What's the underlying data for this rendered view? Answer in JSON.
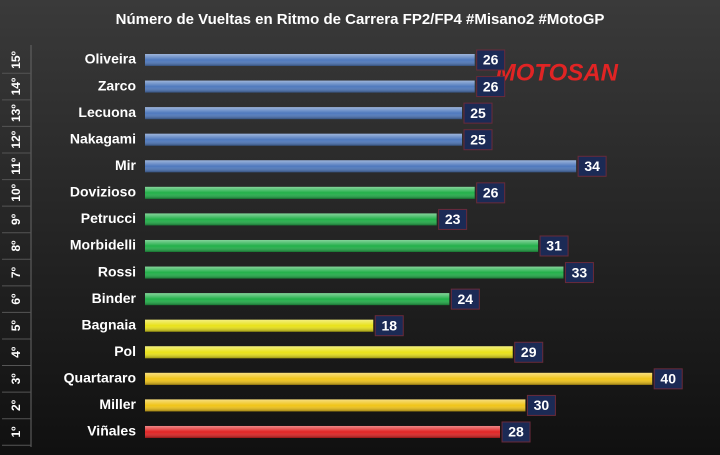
{
  "chart_data": {
    "type": "hbar",
    "title": "Número de Vueltas en Ritmo de Carrera FP2/FP4 #Misano2 #MotoGP",
    "logo": "MOTOSAN",
    "ranks": [
      "15º",
      "14º",
      "13º",
      "12º",
      "11º",
      "10º",
      "9º",
      "8º",
      "7º",
      "6º",
      "5º",
      "4º",
      "3º",
      "2º",
      "1º"
    ],
    "categories": [
      "Oliveira",
      "Zarco",
      "Lecuona",
      "Nakagami",
      "Mir",
      "Dovizioso",
      "Petrucci",
      "Morbidelli",
      "Rossi",
      "Binder",
      "Bagnaia",
      "Pol",
      "Quartararo",
      "Miller",
      "Viñales"
    ],
    "values": [
      26,
      26,
      25,
      25,
      34,
      26,
      23,
      31,
      33,
      24,
      18,
      29,
      40,
      30,
      28
    ],
    "colors": [
      "#4f79bd",
      "#4f79bd",
      "#4f79bd",
      "#4f79bd",
      "#4f79bd",
      "#23b04a",
      "#23b04a",
      "#23b04a",
      "#23b04a",
      "#23b04a",
      "#e9e21a",
      "#e9e21a",
      "#f0c419",
      "#f0c419",
      "#e02424"
    ]
  }
}
